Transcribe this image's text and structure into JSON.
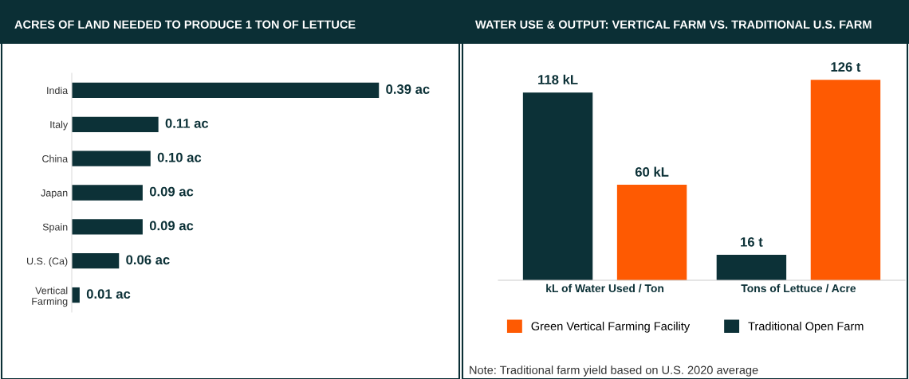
{
  "chart_data": [
    {
      "type": "bar",
      "title": "ACRES OF LAND NEEDED TO PRODUCE 1 TON OF LETTUCE",
      "orientation": "horizontal",
      "categories": [
        "India",
        "Italy",
        "China",
        "Japan",
        "Spain",
        "U.S. (Ca)",
        "Vertical\nFarming"
      ],
      "values": [
        0.39,
        0.11,
        0.1,
        0.09,
        0.09,
        0.06,
        0.01
      ],
      "value_labels": [
        "0.39 ac",
        "0.11 ac",
        "0.10 ac",
        "0.09 ac",
        "0.09 ac",
        "0.06 ac",
        "0.01 ac"
      ],
      "color": "#0c3137",
      "tick_labels": "y"
    },
    {
      "type": "bar",
      "title": "WATER USE & OUTPUT: VERTICAL FARM VS. TRADITIONAL U.S. FARM",
      "categories": [
        "kL of Water Used / Ton",
        "Tons of Lettuce / Acre"
      ],
      "series": [
        {
          "name": "Traditional Open Farm",
          "color": "#0c3137",
          "values": [
            118,
            16
          ],
          "value_labels": [
            "118 kL",
            "16 t"
          ]
        },
        {
          "name": "Green Vertical Farming Facility",
          "color": "#fe5a02",
          "values": [
            60,
            126
          ],
          "value_labels": [
            "60 kL",
            "126 t"
          ]
        }
      ],
      "tick_labels": "x",
      "legend": "bottom",
      "annotations": [
        "Note: Traditional farm yield based on U.S. 2020 average"
      ]
    }
  ]
}
